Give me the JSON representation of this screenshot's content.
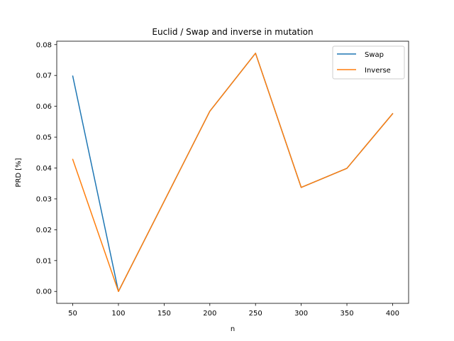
{
  "chart_data": {
    "type": "line",
    "title": "Euclid / Swap and inverse in mutation",
    "xlabel": "n",
    "ylabel": "PRD [%]",
    "x": [
      50,
      100,
      200,
      250,
      300,
      350,
      400
    ],
    "xticks": [
      50,
      100,
      150,
      200,
      250,
      300,
      350,
      400
    ],
    "xtick_labels": [
      "50",
      "100",
      "150",
      "200",
      "250",
      "300",
      "350",
      "400"
    ],
    "yticks": [
      0.0,
      0.01,
      0.02,
      0.03,
      0.04,
      0.05,
      0.06,
      0.07,
      0.08
    ],
    "ytick_labels": [
      "0.00",
      "0.01",
      "0.02",
      "0.03",
      "0.04",
      "0.05",
      "0.06",
      "0.07",
      "0.08"
    ],
    "xlim": [
      32.5,
      417.5
    ],
    "ylim": [
      -0.00386,
      0.0811
    ],
    "grid": false,
    "legend_position": "upper right",
    "series": [
      {
        "name": "Swap",
        "color": "#1f77b4",
        "values": [
          0.0698,
          0.0,
          0.0584,
          0.0772,
          0.0337,
          0.0399,
          0.0576
        ]
      },
      {
        "name": "Inverse",
        "color": "#ff7f0e",
        "values": [
          0.0428,
          0.0,
          0.0584,
          0.0772,
          0.0337,
          0.0399,
          0.0576
        ]
      }
    ]
  }
}
